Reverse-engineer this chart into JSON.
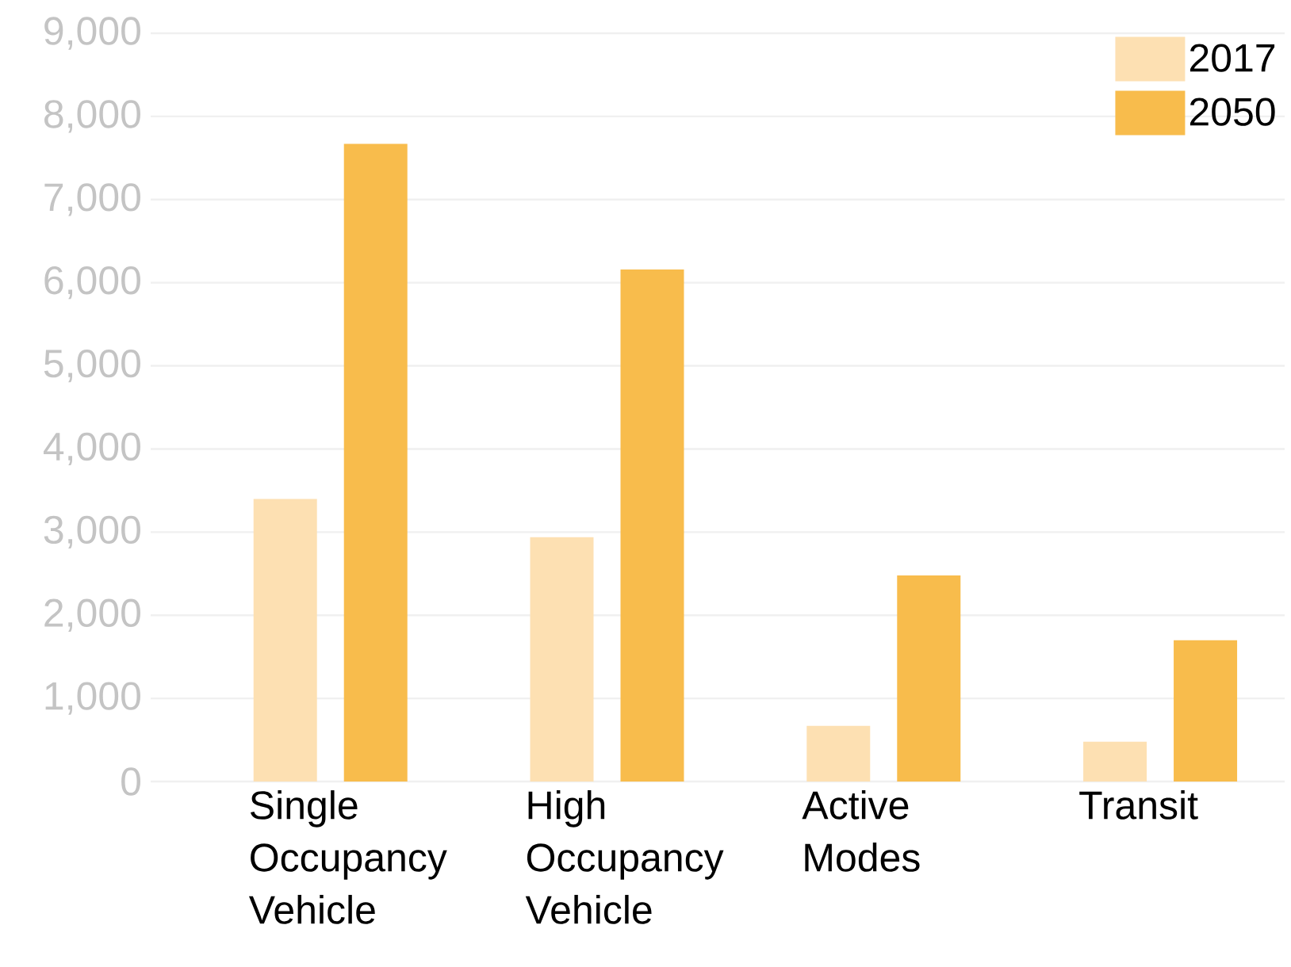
{
  "chart_data": {
    "type": "bar",
    "categories": [
      "Single Occupancy Vehicle",
      "High Occupancy Vehicle",
      "Active Modes",
      "Transit"
    ],
    "series": [
      {
        "name": "2017",
        "color": "#fde0b2",
        "values": [
          3400,
          2940,
          670,
          480
        ]
      },
      {
        "name": "2050",
        "color": "#f8bc4c",
        "values": [
          7670,
          6160,
          2480,
          1700
        ]
      }
    ],
    "ylim": [
      0,
      9000
    ],
    "yticks": [
      {
        "value": 0,
        "label": "0"
      },
      {
        "value": 1000,
        "label": "1,000"
      },
      {
        "value": 2000,
        "label": "2,000"
      },
      {
        "value": 3000,
        "label": "3,000"
      },
      {
        "value": 4000,
        "label": "4,000"
      },
      {
        "value": 5000,
        "label": "5,000"
      },
      {
        "value": 6000,
        "label": "6,000"
      },
      {
        "value": 7000,
        "label": "7,000"
      },
      {
        "value": 8000,
        "label": "8,000"
      },
      {
        "value": 9000,
        "label": "9,000"
      }
    ],
    "grid": "y",
    "legend": "top right"
  }
}
